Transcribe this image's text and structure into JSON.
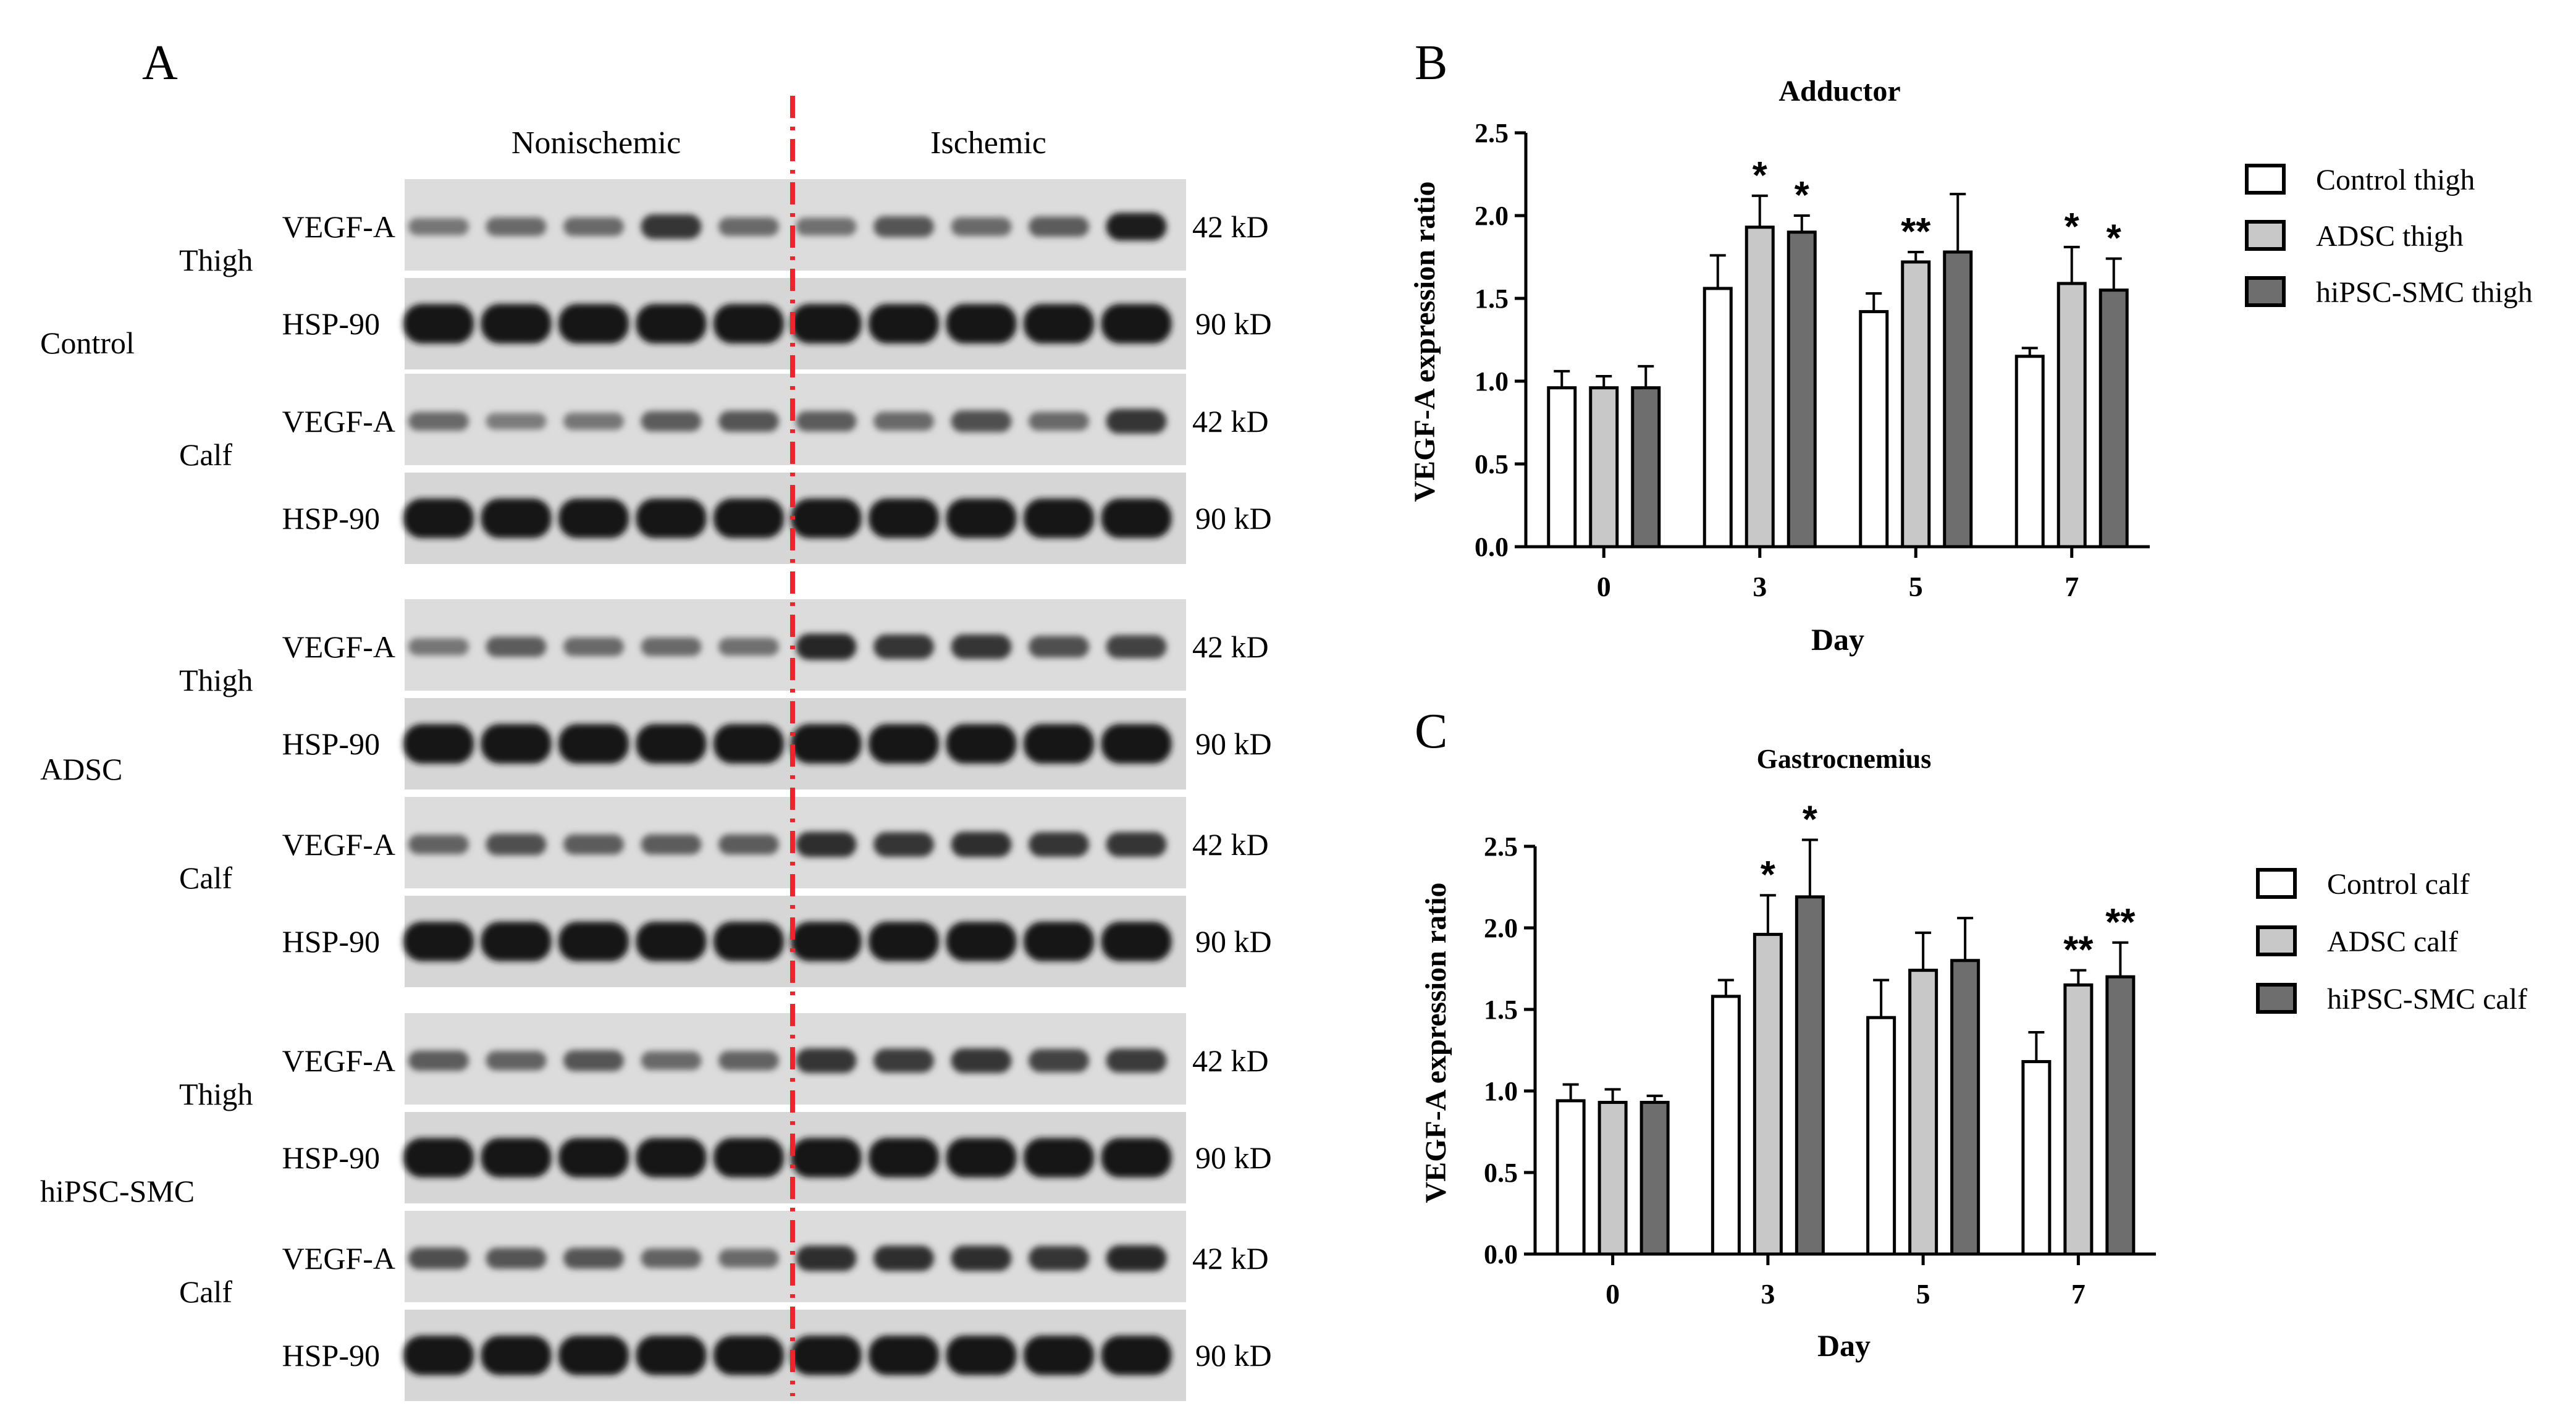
{
  "panel_a": {
    "letter": "A",
    "columns": [
      "Nonischemic",
      "Ischemic"
    ],
    "divider_color": "#e8262b",
    "groups": [
      {
        "name": "Control",
        "pairs": [
          {
            "tissue": "Thigh",
            "target": "VEGF-A",
            "target_kd": "42 kD",
            "loading": "HSP-90",
            "loading_kd": "90 kD",
            "target_bands": [
              0.25,
              0.35,
              0.35,
              0.75,
              0.35,
              0.3,
              0.5,
              0.35,
              0.45,
              0.95
            ]
          },
          {
            "tissue": "Calf",
            "target": "VEGF-A",
            "target_kd": "42 kD",
            "loading": "HSP-90",
            "loading_kd": "90 kD",
            "target_bands": [
              0.35,
              0.2,
              0.25,
              0.45,
              0.5,
              0.45,
              0.35,
              0.55,
              0.35,
              0.75
            ]
          }
        ]
      },
      {
        "name": "ADSC",
        "pairs": [
          {
            "tissue": "Thigh",
            "target": "VEGF-A",
            "target_kd": "42 kD",
            "loading": "HSP-90",
            "loading_kd": "90 kD",
            "target_bands": [
              0.25,
              0.45,
              0.35,
              0.35,
              0.3,
              0.85,
              0.75,
              0.75,
              0.55,
              0.65
            ]
          },
          {
            "tissue": "Calf",
            "target": "VEGF-A",
            "target_kd": "42 kD",
            "loading": "HSP-90",
            "loading_kd": "90 kD",
            "target_bands": [
              0.4,
              0.55,
              0.45,
              0.45,
              0.45,
              0.8,
              0.75,
              0.8,
              0.75,
              0.75
            ]
          }
        ]
      },
      {
        "name": "hiPSC-SMC",
        "pairs": [
          {
            "tissue": "Thigh",
            "target": "VEGF-A",
            "target_kd": "42 kD",
            "loading": "HSP-90",
            "loading_kd": "90 kD",
            "target_bands": [
              0.45,
              0.4,
              0.5,
              0.35,
              0.4,
              0.75,
              0.7,
              0.75,
              0.65,
              0.7
            ]
          },
          {
            "tissue": "Calf",
            "target": "VEGF-A",
            "target_kd": "42 kD",
            "loading": "HSP-90",
            "loading_kd": "90 kD",
            "target_bands": [
              0.55,
              0.5,
              0.5,
              0.4,
              0.35,
              0.8,
              0.8,
              0.8,
              0.75,
              0.85
            ]
          }
        ]
      }
    ]
  },
  "chart_data": [
    {
      "letter": "B",
      "type": "bar",
      "title": "Adductor",
      "xlabel": "Day",
      "ylabel": "VEGF-A expression ratio",
      "categories": [
        "0",
        "3",
        "5",
        "7"
      ],
      "ylim": [
        0,
        2.5
      ],
      "yticks": [
        "0.0",
        "0.5",
        "1.0",
        "1.5",
        "2.0",
        "2.5"
      ],
      "legend_position": "right",
      "series": [
        {
          "name": "Control thigh",
          "color": "#ffffff",
          "values": [
            0.96,
            1.56,
            1.42,
            1.15
          ],
          "errors": [
            0.1,
            0.2,
            0.11,
            0.05
          ],
          "marks": [
            "",
            "",
            "",
            ""
          ]
        },
        {
          "name": "ADSC thigh",
          "color": "#c8c8c8",
          "values": [
            0.96,
            1.93,
            1.72,
            1.59
          ],
          "errors": [
            0.07,
            0.19,
            0.06,
            0.22
          ],
          "marks": [
            "",
            "*",
            "**",
            "*"
          ]
        },
        {
          "name": "hiPSC-SMC thigh",
          "color": "#6e6e6e",
          "values": [
            0.96,
            1.9,
            1.78,
            1.55
          ],
          "errors": [
            0.13,
            0.1,
            0.35,
            0.19
          ],
          "marks": [
            "",
            "*",
            "",
            "*"
          ]
        }
      ]
    },
    {
      "letter": "C",
      "type": "bar",
      "title": "Gastrocnemius",
      "xlabel": "Day",
      "ylabel": "VEGF-A expression ratio",
      "categories": [
        "0",
        "3",
        "5",
        "7"
      ],
      "ylim": [
        0,
        2.5
      ],
      "yticks": [
        "0.0",
        "0.5",
        "1.0",
        "1.5",
        "2.0",
        "2.5"
      ],
      "legend_position": "right",
      "series": [
        {
          "name": "Control calf",
          "color": "#ffffff",
          "values": [
            0.94,
            1.58,
            1.45,
            1.18
          ],
          "errors": [
            0.1,
            0.1,
            0.23,
            0.18
          ],
          "marks": [
            "",
            "",
            "",
            ""
          ]
        },
        {
          "name": "ADSC calf",
          "color": "#c8c8c8",
          "values": [
            0.93,
            1.96,
            1.74,
            1.65
          ],
          "errors": [
            0.08,
            0.24,
            0.23,
            0.09
          ],
          "marks": [
            "",
            "*",
            "",
            "**"
          ]
        },
        {
          "name": "hiPSC-SMC calf",
          "color": "#6e6e6e",
          "values": [
            0.93,
            2.19,
            1.8,
            1.7
          ],
          "errors": [
            0.04,
            0.35,
            0.26,
            0.21
          ],
          "marks": [
            "",
            "*",
            "",
            "**"
          ]
        }
      ]
    }
  ]
}
